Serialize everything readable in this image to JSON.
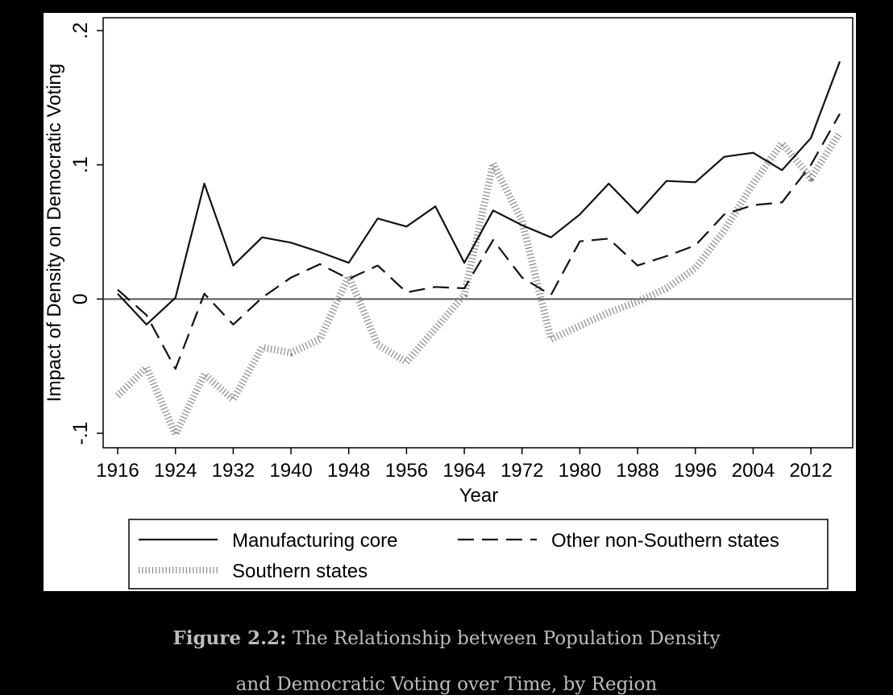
{
  "chart_data": {
    "type": "line",
    "xlabel": "Year",
    "ylabel": "Impact of Density on Democratic Voting",
    "xlim": [
      1916,
      2016
    ],
    "ylim": [
      -0.1,
      0.2
    ],
    "xticks": [
      "1916",
      "1924",
      "1932",
      "1940",
      "1948",
      "1956",
      "1964",
      "1972",
      "1980",
      "1988",
      "1996",
      "2004",
      "2012"
    ],
    "yticks": [
      {
        "v": -0.1,
        "label": "-.1"
      },
      {
        "v": 0,
        "label": "0"
      },
      {
        "v": 0.1,
        "label": ".1"
      },
      {
        "v": 0.2,
        "label": ".2"
      }
    ],
    "reference_line": 0,
    "grid": false,
    "legend_position": "bottom",
    "x": [
      1916,
      1920,
      1924,
      1928,
      1932,
      1936,
      1940,
      1944,
      1948,
      1952,
      1956,
      1960,
      1964,
      1968,
      1972,
      1976,
      1980,
      1984,
      1988,
      1992,
      1996,
      2000,
      2004,
      2008,
      2012,
      2016
    ],
    "series": [
      {
        "name": "Manufacturing core",
        "style": "solid",
        "values": [
          0.004,
          -0.019,
          0.001,
          0.086,
          0.025,
          0.046,
          0.042,
          0.035,
          0.027,
          0.06,
          0.054,
          0.069,
          0.027,
          0.066,
          0.055,
          0.046,
          0.063,
          0.086,
          0.064,
          0.088,
          0.087,
          0.106,
          0.109,
          0.096,
          0.12,
          0.177
        ]
      },
      {
        "name": "Other non-Southern states",
        "style": "dashed",
        "values": [
          0.007,
          -0.012,
          -0.052,
          0.004,
          -0.019,
          0.001,
          0.016,
          0.026,
          0.015,
          0.025,
          0.005,
          0.009,
          0.008,
          0.044,
          0.016,
          0.003,
          0.043,
          0.045,
          0.025,
          0.032,
          0.04,
          0.063,
          0.07,
          0.072,
          0.1,
          0.138
        ]
      },
      {
        "name": "Southern states",
        "style": "dotted",
        "values": [
          -0.072,
          -0.051,
          -0.101,
          -0.056,
          -0.075,
          -0.036,
          -0.04,
          -0.03,
          0.017,
          -0.034,
          -0.047,
          -0.022,
          0.003,
          0.101,
          0.058,
          -0.03,
          -0.02,
          -0.01,
          -0.002,
          0.008,
          0.023,
          0.051,
          0.086,
          0.116,
          0.09,
          0.124
        ]
      }
    ]
  },
  "caption": {
    "label": "Figure 2.2:",
    "text": "The Relationship between Population Density",
    "line2": "and Democratic Voting over Time, by Region"
  }
}
